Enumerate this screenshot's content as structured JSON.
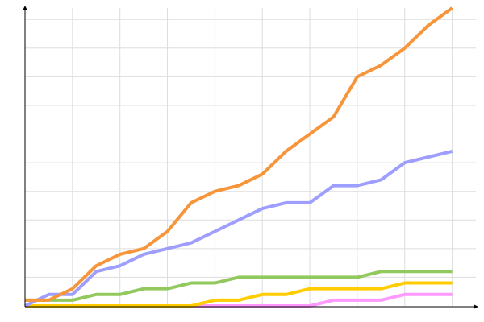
{
  "chart_data": {
    "type": "line",
    "x": [
      0,
      1,
      2,
      3,
      4,
      5,
      6,
      7,
      8,
      9,
      10,
      11,
      12,
      13,
      14,
      15,
      16,
      17,
      18
    ],
    "xlim": [
      0,
      19
    ],
    "xticks": [
      2,
      4,
      6,
      8,
      10,
      12,
      14,
      16,
      18
    ],
    "ylim": [
      0,
      52
    ],
    "yticks": [
      5,
      10,
      15,
      20,
      25,
      30,
      35,
      40,
      45,
      50
    ],
    "grid": true,
    "series": [
      {
        "color": "#ff99ff",
        "values": [
          0,
          0,
          0,
          0,
          0,
          0,
          0,
          0,
          0,
          0,
          0,
          0,
          0,
          1,
          1,
          1,
          2,
          2,
          2
        ]
      },
      {
        "color": "#ffcc00",
        "values": [
          0,
          0,
          0,
          0,
          0,
          0,
          0,
          0,
          1,
          1,
          2,
          2,
          3,
          3,
          3,
          3,
          4,
          4,
          4
        ]
      },
      {
        "color": "#92c95f",
        "values": [
          1,
          1,
          1,
          2,
          2,
          3,
          3,
          4,
          4,
          5,
          5,
          5,
          5,
          5,
          5,
          6,
          6,
          6,
          6
        ]
      },
      {
        "color": "#9e9eff",
        "values": [
          0,
          2,
          2,
          6,
          7,
          9,
          10,
          11,
          13,
          15,
          17,
          18,
          18,
          21,
          21,
          22,
          25,
          26,
          27
        ]
      },
      {
        "color": "#f7953b",
        "values": [
          1,
          1,
          3,
          7,
          9,
          10,
          13,
          18,
          20,
          21,
          23,
          27,
          30,
          33,
          40,
          42,
          45,
          49,
          52
        ]
      }
    ]
  }
}
